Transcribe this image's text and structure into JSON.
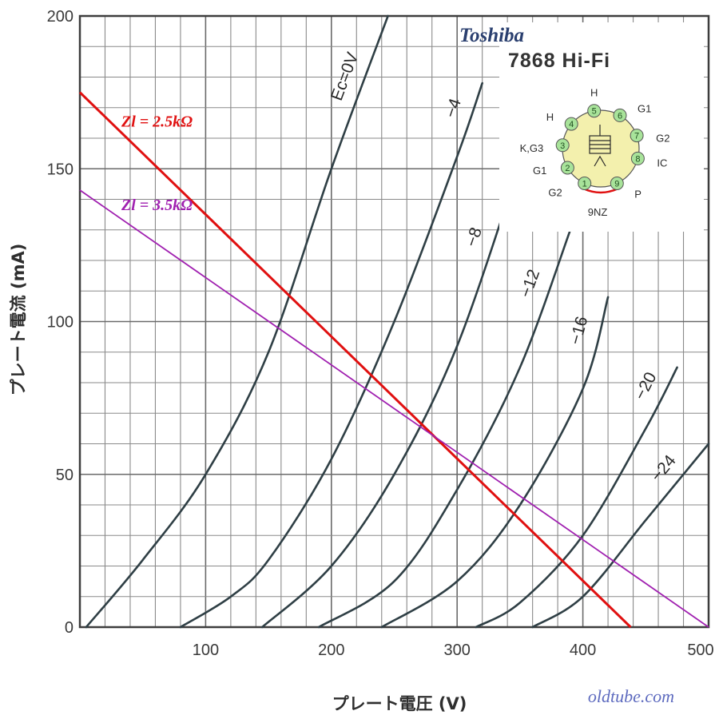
{
  "chart_data": {
    "type": "line",
    "title": "7868 Hi-Fi",
    "brand": "Toshiba",
    "xlabel": "プレート電圧 (V)",
    "ylabel": "プレート電流 (mA)",
    "xlim": [
      0,
      500
    ],
    "ylim": [
      0,
      200
    ],
    "x_ticks": [
      "100",
      "200",
      "300",
      "400",
      "500"
    ],
    "y_ticks": [
      "0",
      "50",
      "100",
      "150",
      "200"
    ],
    "grid": true,
    "series": [
      {
        "name": "Ec=0V",
        "points": [
          [
            5,
            0
          ],
          [
            50,
            22
          ],
          [
            100,
            50
          ],
          [
            150,
            90
          ],
          [
            200,
            150
          ],
          [
            245,
            200
          ]
        ]
      },
      {
        "name": "−4",
        "points": [
          [
            80,
            0
          ],
          [
            120,
            10
          ],
          [
            150,
            22
          ],
          [
            200,
            55
          ],
          [
            250,
            100
          ],
          [
            300,
            154
          ],
          [
            320,
            178
          ]
        ]
      },
      {
        "name": "−8",
        "points": [
          [
            145,
            0
          ],
          [
            200,
            20
          ],
          [
            250,
            50
          ],
          [
            300,
            92
          ],
          [
            350,
            152
          ]
        ]
      },
      {
        "name": "−12",
        "points": [
          [
            190,
            0
          ],
          [
            250,
            15
          ],
          [
            300,
            45
          ],
          [
            350,
            85
          ],
          [
            390,
            130
          ]
        ]
      },
      {
        "name": "−16",
        "points": [
          [
            240,
            0
          ],
          [
            300,
            15
          ],
          [
            350,
            40
          ],
          [
            400,
            78
          ],
          [
            420,
            108
          ]
        ]
      },
      {
        "name": "−20",
        "points": [
          [
            315,
            0
          ],
          [
            350,
            8
          ],
          [
            400,
            30
          ],
          [
            450,
            65
          ],
          [
            475,
            85
          ]
        ]
      },
      {
        "name": "−24",
        "points": [
          [
            360,
            0
          ],
          [
            400,
            10
          ],
          [
            450,
            35
          ],
          [
            500,
            60
          ]
        ]
      }
    ],
    "load_lines": [
      {
        "name": "Zl = 2.5kΩ",
        "color": "#e01010",
        "points": [
          [
            0,
            175
          ],
          [
            438,
            0
          ]
        ]
      },
      {
        "name": "Zl = 3.5kΩ",
        "color": "#a020b0",
        "points": [
          [
            0,
            143
          ],
          [
            500,
            0
          ]
        ]
      }
    ]
  },
  "tube_base": {
    "code": "9NZ",
    "pins": [
      {
        "num": "1",
        "name": "G2"
      },
      {
        "num": "2",
        "name": "G1"
      },
      {
        "num": "3",
        "name": "K,G3"
      },
      {
        "num": "4",
        "name": "H"
      },
      {
        "num": "5",
        "name": "H"
      },
      {
        "num": "6",
        "name": "G1"
      },
      {
        "num": "7",
        "name": "G2"
      },
      {
        "num": "8",
        "name": "IC"
      },
      {
        "num": "9",
        "name": "P"
      }
    ]
  },
  "credit": "oldtube.com"
}
